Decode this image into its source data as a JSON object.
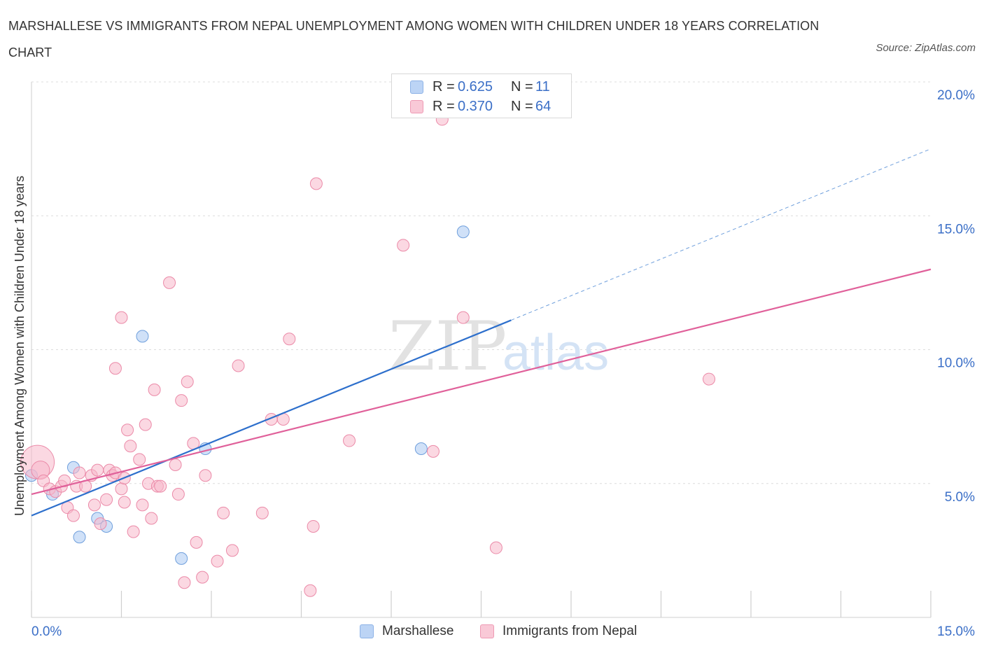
{
  "title": "MARSHALLESE VS IMMIGRANTS FROM NEPAL UNEMPLOYMENT AMONG WOMEN WITH CHILDREN UNDER 18 YEARS CORRELATION CHART",
  "source": "Source: ZipAtlas.com",
  "watermark": {
    "zip": "ZIP",
    "atlas": "atlas"
  },
  "stats": [
    {
      "r_label": "R =",
      "r": "0.625",
      "n_label": "N =",
      "n": "11",
      "color": "#a9c8f2"
    },
    {
      "r_label": "R =",
      "r": "0.370",
      "n_label": "N =",
      "n": "64",
      "color": "#f7b8cb"
    }
  ],
  "legend": [
    {
      "label": "Marshallese",
      "color": "#a9c8f2"
    },
    {
      "label": "Immigrants from Nepal",
      "color": "#f7b8cb"
    }
  ],
  "chart_data": {
    "type": "scatter",
    "ylabel": "Unemployment Among Women with Children Under 18 years",
    "xlim": [
      0,
      15
    ],
    "ylim": [
      0,
      20
    ],
    "x_tick_labels": [
      {
        "value": 0,
        "label": "0.0%"
      },
      {
        "value": 15,
        "label": "15.0%"
      }
    ],
    "y_tick_labels": [
      {
        "value": 5,
        "label": "5.0%"
      },
      {
        "value": 10,
        "label": "10.0%"
      },
      {
        "value": 15,
        "label": "15.0%"
      },
      {
        "value": 20,
        "label": "20.0%"
      }
    ],
    "grid": true,
    "series": [
      {
        "name": "Marshallese",
        "color": "#a9c8f2",
        "stroke": "#6f9fdc",
        "line_color": "#2d6fcc",
        "trend": {
          "x0": 0,
          "y0": 3.8,
          "x1": 8.0,
          "y1": 11.1,
          "dashed_to_x": 15,
          "dashed_to_y": 17.5
        },
        "points": [
          [
            0.0,
            5.3
          ],
          [
            0.35,
            4.6
          ],
          [
            0.7,
            5.6
          ],
          [
            0.8,
            3.0
          ],
          [
            1.1,
            3.7
          ],
          [
            1.25,
            3.4
          ],
          [
            1.85,
            10.5
          ],
          [
            2.5,
            2.2
          ],
          [
            2.9,
            6.3
          ],
          [
            6.5,
            6.3
          ],
          [
            7.2,
            14.4
          ]
        ]
      },
      {
        "name": "Immigrants from Nepal",
        "color": "#f7b8cb",
        "stroke": "#eb8aa8",
        "line_color": "#e0609a",
        "trend": {
          "x0": 0,
          "y0": 4.6,
          "x1": 15,
          "y1": 13.0
        },
        "points": [
          [
            0.1,
            5.8
          ],
          [
            0.15,
            5.5
          ],
          [
            0.2,
            5.1
          ],
          [
            0.3,
            4.8
          ],
          [
            0.4,
            4.7
          ],
          [
            0.5,
            4.9
          ],
          [
            0.55,
            5.1
          ],
          [
            0.6,
            4.1
          ],
          [
            0.7,
            3.8
          ],
          [
            0.75,
            4.9
          ],
          [
            0.8,
            5.4
          ],
          [
            0.9,
            4.9
          ],
          [
            1.0,
            5.3
          ],
          [
            1.05,
            4.2
          ],
          [
            1.1,
            5.5
          ],
          [
            1.15,
            3.5
          ],
          [
            1.25,
            4.4
          ],
          [
            1.3,
            5.5
          ],
          [
            1.35,
            5.3
          ],
          [
            1.4,
            5.4
          ],
          [
            1.5,
            4.8
          ],
          [
            1.55,
            4.3
          ],
          [
            1.6,
            7.0
          ],
          [
            1.65,
            6.4
          ],
          [
            1.4,
            9.3
          ],
          [
            1.5,
            11.2
          ],
          [
            1.7,
            3.2
          ],
          [
            1.55,
            5.2
          ],
          [
            1.8,
            5.9
          ],
          [
            1.85,
            4.2
          ],
          [
            1.9,
            7.2
          ],
          [
            1.95,
            5.0
          ],
          [
            2.0,
            3.7
          ],
          [
            2.05,
            8.5
          ],
          [
            2.1,
            4.9
          ],
          [
            2.15,
            4.9
          ],
          [
            2.3,
            12.5
          ],
          [
            2.4,
            5.7
          ],
          [
            2.45,
            4.6
          ],
          [
            2.5,
            8.1
          ],
          [
            2.55,
            1.3
          ],
          [
            2.6,
            8.8
          ],
          [
            2.7,
            6.5
          ],
          [
            2.75,
            2.8
          ],
          [
            2.85,
            1.5
          ],
          [
            2.9,
            5.3
          ],
          [
            3.1,
            2.1
          ],
          [
            3.2,
            3.9
          ],
          [
            3.35,
            2.5
          ],
          [
            3.45,
            9.4
          ],
          [
            3.85,
            3.9
          ],
          [
            4.0,
            7.4
          ],
          [
            4.2,
            7.4
          ],
          [
            4.3,
            10.4
          ],
          [
            4.65,
            1.0
          ],
          [
            4.7,
            3.4
          ],
          [
            4.75,
            16.2
          ],
          [
            5.3,
            6.6
          ],
          [
            6.2,
            13.9
          ],
          [
            6.7,
            6.2
          ],
          [
            6.85,
            18.6
          ],
          [
            7.2,
            11.2
          ],
          [
            7.75,
            2.6
          ],
          [
            11.3,
            8.9
          ]
        ]
      }
    ]
  }
}
